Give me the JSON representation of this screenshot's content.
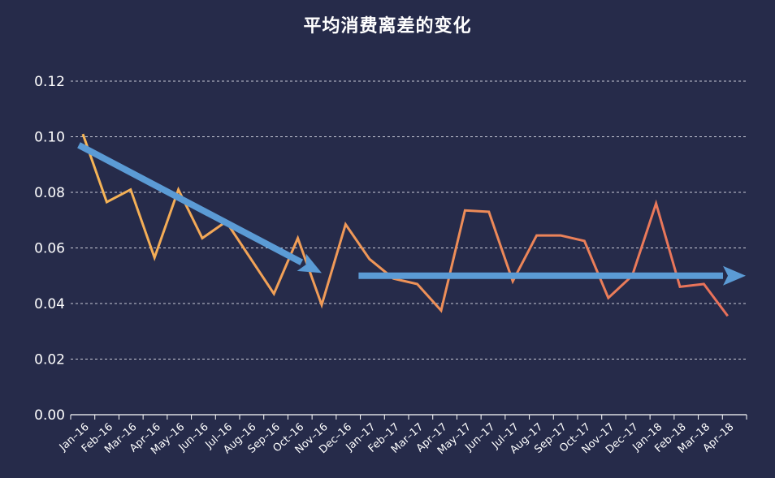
{
  "chart_data": {
    "type": "line",
    "title": "平均消费离差的变化",
    "xlabel": "",
    "ylabel": "",
    "categories": [
      "Jan–16",
      "Feb–16",
      "Mar–16",
      "Apr–16",
      "May–16",
      "Jun–16",
      "Jul–16",
      "Aug–16",
      "Sep–16",
      "Oct–16",
      "Nov–16",
      "Dec–16",
      "Jan–17",
      "Feb–17",
      "Mar–17",
      "Apr–17",
      "May–17",
      "Jun–17",
      "Jul–17",
      "Aug–17",
      "Sep–17",
      "Oct–17",
      "Nov–17",
      "Dec–17",
      "Jan–18",
      "Feb–18",
      "Mar–18",
      "Apr–18"
    ],
    "series": [
      {
        "values": [
          0.101,
          0.0765,
          0.081,
          0.0565,
          0.081,
          0.0635,
          0.0695,
          0.0565,
          0.0435,
          0.0635,
          0.0395,
          0.0685,
          0.056,
          0.049,
          0.047,
          0.0375,
          0.0735,
          0.073,
          0.048,
          0.0645,
          0.0645,
          0.0625,
          0.042,
          0.05,
          0.076,
          0.046,
          0.047,
          0.0355
        ],
        "color_start": "#f5b556",
        "color_end": "#e8705a"
      }
    ],
    "annotations": [
      {
        "type": "arrow",
        "from": {
          "x": "Jan–16",
          "y": 0.097
        },
        "to": {
          "x": "Nov–16",
          "y": 0.051
        },
        "color": "#5b9bd5"
      },
      {
        "type": "arrow",
        "from": {
          "x": "Dec–16",
          "y": 0.05
        },
        "to": {
          "x": "Apr–18",
          "y": 0.05
        },
        "color": "#5b9bd5"
      }
    ],
    "ylim": [
      0,
      0.12
    ],
    "yticks": [
      0.0,
      0.02,
      0.04,
      0.06,
      0.08,
      0.1,
      0.12
    ],
    "ytick_labels": [
      "0.00",
      "0.02",
      "0.04",
      "0.06",
      "0.08",
      "0.10",
      "0.12"
    ],
    "grid": true,
    "grid_style": "dashed",
    "legend": "none",
    "colors": {
      "background": "#262b4a",
      "text": "#ffffff",
      "grid": "#c8cad6"
    }
  }
}
